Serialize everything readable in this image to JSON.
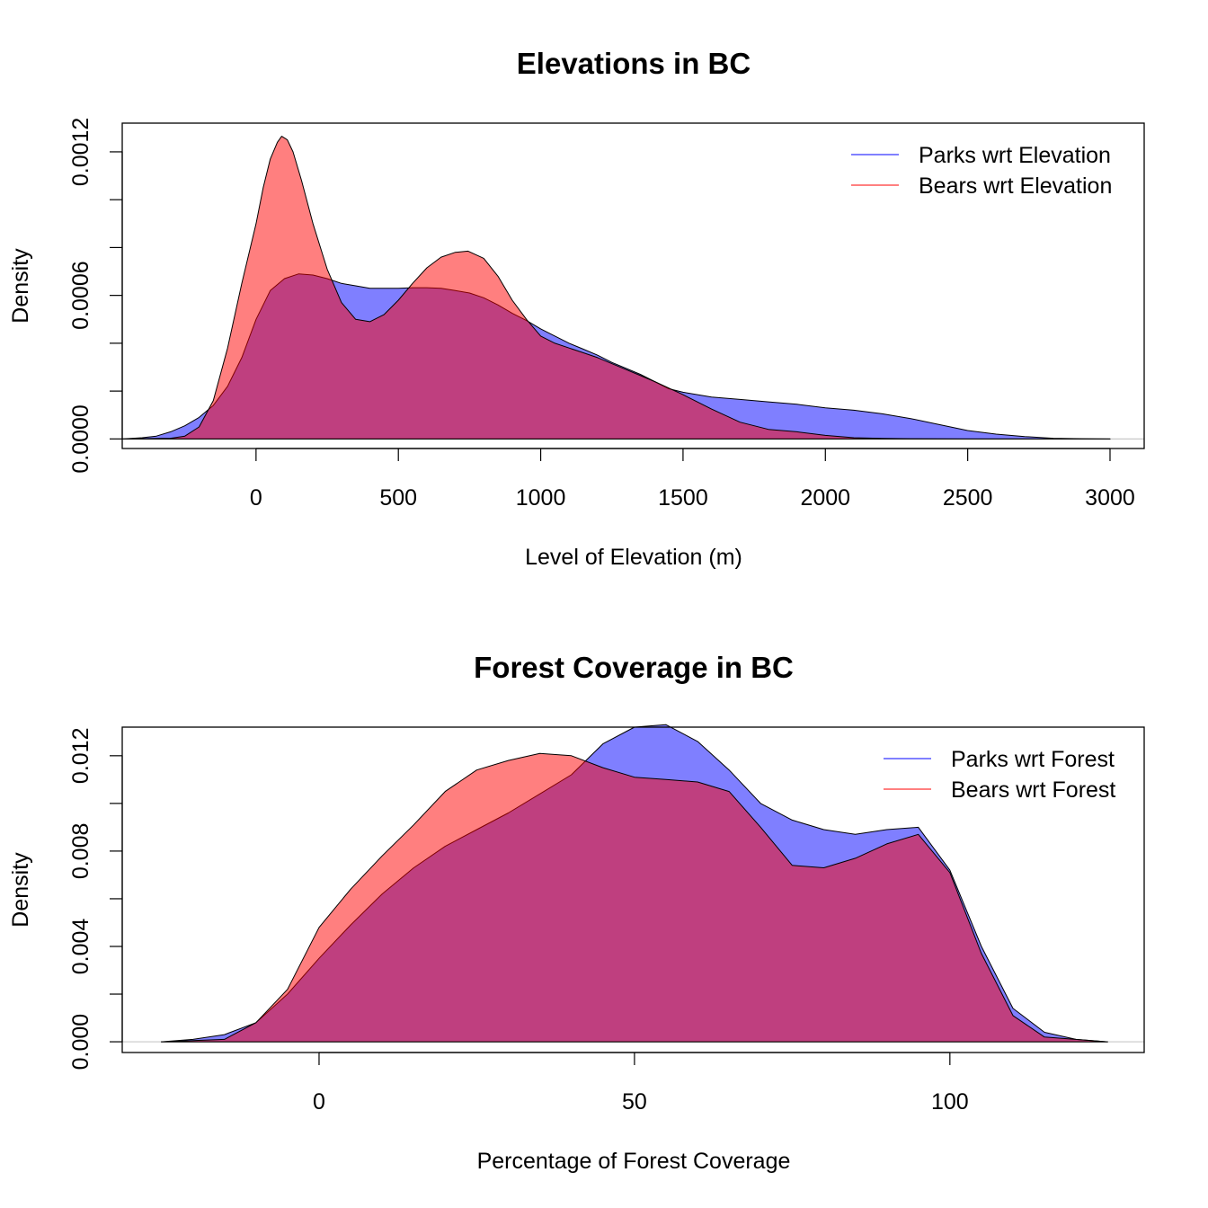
{
  "chart_data": [
    {
      "type": "area",
      "title": "Elevations in BC",
      "xlabel": "Level of Elevation (m)",
      "ylabel": "Density",
      "xlim": [
        -470,
        3120
      ],
      "ylim": [
        -4e-05,
        0.00132
      ],
      "xticks": [
        0,
        500,
        1000,
        1500,
        2000,
        2500,
        3000
      ],
      "xtick_labels": [
        "0",
        "500",
        "1000",
        "1500",
        "2000",
        "2500",
        "3000"
      ],
      "yticks": [
        0,
        0.0002,
        0.0004,
        0.0006,
        0.0008,
        0.001,
        0.0012
      ],
      "ytick_labels": [
        "0.0000",
        "",
        "",
        "0.0006",
        "",
        "",
        "0.0012"
      ],
      "legend_position": "top-right",
      "grid": false,
      "series": [
        {
          "name": "Parks wrt Elevation",
          "color": "#0000ff",
          "fill": "rgba(0,0,255,0.5)",
          "x": [
            -470,
            -400,
            -350,
            -300,
            -250,
            -200,
            -150,
            -100,
            -50,
            0,
            50,
            100,
            150,
            200,
            250,
            300,
            350,
            400,
            450,
            500,
            550,
            600,
            650,
            700,
            750,
            800,
            850,
            900,
            950,
            1000,
            1050,
            1100,
            1150,
            1200,
            1250,
            1300,
            1350,
            1400,
            1450,
            1500,
            1600,
            1700,
            1800,
            1900,
            2000,
            2100,
            2200,
            2300,
            2400,
            2500,
            2600,
            2700,
            2800,
            2900,
            3000
          ],
          "y": [
            0,
            5e-06,
            1.2e-05,
            3e-05,
            5.5e-05,
            9e-05,
            0.00014,
            0.00022,
            0.00034,
            0.0005,
            0.00062,
            0.00067,
            0.00069,
            0.000685,
            0.00067,
            0.00065,
            0.00064,
            0.00063,
            0.00063,
            0.00063,
            0.000632,
            0.000632,
            0.00063,
            0.00062,
            0.00061,
            0.00059,
            0.00056,
            0.000525,
            0.000495,
            0.00046,
            0.00043,
            0.0004,
            0.000375,
            0.00035,
            0.00032,
            0.000295,
            0.00027,
            0.00024,
            0.00021,
            0.000195,
            0.000175,
            0.000165,
            0.000155,
            0.000145,
            0.00013,
            0.00012,
            0.000105,
            8.5e-05,
            6e-05,
            3.5e-05,
            2e-05,
            1e-05,
            3e-06,
            1e-06,
            0
          ]
        },
        {
          "name": "Bears wrt Elevation",
          "color": "#ff0000",
          "fill": "rgba(255,0,0,0.5)",
          "x": [
            -470,
            -300,
            -250,
            -200,
            -150,
            -100,
            -50,
            0,
            25,
            50,
            75,
            90,
            110,
            130,
            160,
            200,
            250,
            300,
            350,
            400,
            450,
            500,
            550,
            600,
            650,
            700,
            745,
            800,
            850,
            900,
            950,
            1000,
            1050,
            1100,
            1150,
            1200,
            1300,
            1400,
            1500,
            1600,
            1700,
            1800,
            1900,
            2000,
            2100,
            2200,
            2300,
            2400,
            2500,
            3000
          ],
          "y": [
            0,
            3e-06,
            1.2e-05,
            5e-05,
            0.00016,
            0.00038,
            0.00065,
            0.0009,
            0.00105,
            0.00117,
            0.00124,
            0.001265,
            0.00125,
            0.0012,
            0.00108,
            0.0009,
            0.00071,
            0.00057,
            0.0005,
            0.00049,
            0.00052,
            0.00058,
            0.00065,
            0.000715,
            0.00076,
            0.00078,
            0.000785,
            0.000755,
            0.00068,
            0.00058,
            0.0005,
            0.00043,
            0.0004,
            0.00038,
            0.00036,
            0.00034,
            0.00029,
            0.00024,
            0.000185,
            0.000125,
            7e-05,
            4e-05,
            3e-05,
            1.5e-05,
            5e-06,
            2e-06,
            1e-06,
            5e-07,
            0,
            0
          ]
        }
      ]
    },
    {
      "type": "area",
      "title": "Forest Coverage in BC",
      "xlabel": "Percentage of Forest Coverage",
      "ylabel": "Density",
      "xlim": [
        -31.2,
        130.8
      ],
      "ylim": [
        -0.00045,
        0.0132
      ],
      "xticks": [
        0,
        50,
        100
      ],
      "xtick_labels": [
        "0",
        "50",
        "100"
      ],
      "yticks": [
        0,
        0.002,
        0.004,
        0.006,
        0.008,
        0.01,
        0.012
      ],
      "ytick_labels": [
        "0.000",
        "",
        "0.004",
        "",
        "0.008",
        "",
        "0.012"
      ],
      "legend_position": "top-right",
      "grid": false,
      "series": [
        {
          "name": "Parks wrt Forest",
          "color": "#0000ff",
          "fill": "rgba(0,0,255,0.5)",
          "x": [
            -25,
            -20,
            -15,
            -10,
            -5,
            0,
            5,
            10,
            15,
            20,
            25,
            30,
            35,
            40,
            45,
            50,
            55,
            60,
            65,
            70,
            75,
            80,
            85,
            90,
            95,
            100,
            105,
            110,
            115,
            120,
            125
          ],
          "y": [
            0,
            0.0001,
            0.0003,
            0.0008,
            0.002,
            0.0035,
            0.0049,
            0.0062,
            0.0073,
            0.0082,
            0.0089,
            0.0096,
            0.0104,
            0.0112,
            0.0125,
            0.0132,
            0.0133,
            0.0126,
            0.0114,
            0.01,
            0.0093,
            0.0089,
            0.0087,
            0.0089,
            0.009,
            0.0072,
            0.004,
            0.0014,
            0.0004,
            0.0001,
            0
          ]
        },
        {
          "name": "Bears wrt Forest",
          "color": "#ff0000",
          "fill": "rgba(255,0,0,0.5)",
          "x": [
            -25,
            -15,
            -10,
            -5,
            0,
            5,
            10,
            15,
            20,
            25,
            30,
            35,
            40,
            45,
            50,
            55,
            60,
            65,
            70,
            75,
            80,
            85,
            90,
            95,
            100,
            105,
            110,
            115,
            125
          ],
          "y": [
            0,
            0.0001,
            0.0008,
            0.0022,
            0.0048,
            0.0064,
            0.0078,
            0.0091,
            0.0105,
            0.0114,
            0.0118,
            0.0121,
            0.012,
            0.0115,
            0.0111,
            0.011,
            0.0109,
            0.0105,
            0.009,
            0.0074,
            0.0073,
            0.0077,
            0.0083,
            0.0087,
            0.0071,
            0.0037,
            0.0011,
            0.0002,
            0
          ]
        }
      ]
    }
  ]
}
